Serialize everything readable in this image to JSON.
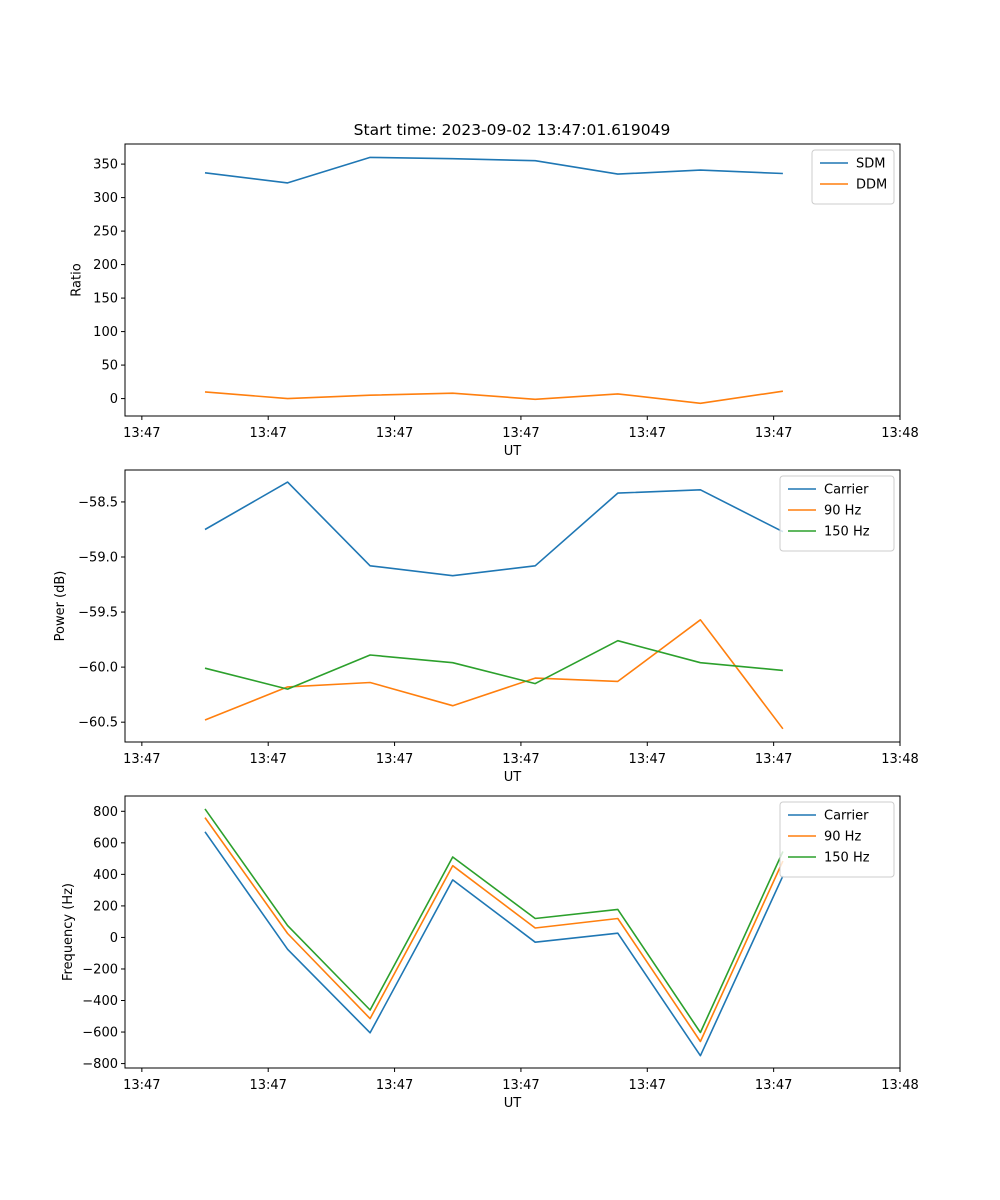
{
  "figure_title": "Start time: 2023-09-02 13:47:01.619049",
  "chart_data": [
    {
      "type": "line",
      "ylabel": "Ratio",
      "xlabel": "UT",
      "ylim": [
        -26,
        380
      ],
      "yticks": [
        0,
        50,
        100,
        150,
        200,
        250,
        300,
        350
      ],
      "ytick_labels": [
        "0",
        "50",
        "100",
        "150",
        "200",
        "250",
        "300",
        "350"
      ],
      "xlim": [
        -0.2,
        9.0
      ],
      "xticks": [
        0,
        1.5,
        3,
        4.5,
        6,
        7.5,
        9
      ],
      "xtick_labels": [
        "13:47",
        "13:47",
        "13:47",
        "13:47",
        "13:47",
        "13:47",
        "13:48"
      ],
      "x": [
        0.75,
        1.73,
        2.71,
        3.69,
        4.67,
        5.65,
        6.63,
        7.61
      ],
      "legend": "top-right",
      "series": [
        {
          "name": "SDM",
          "color": "#1f77b4",
          "values": [
            337,
            322,
            360,
            358,
            355,
            335,
            341,
            336
          ]
        },
        {
          "name": "DDM",
          "color": "#ff7f0e",
          "values": [
            10,
            0,
            5,
            8,
            -1,
            7,
            -7,
            11
          ]
        }
      ]
    },
    {
      "type": "line",
      "ylabel": "Power (dB)",
      "xlabel": "UT",
      "ylim": [
        -60.68,
        -58.21
      ],
      "yticks": [
        -60.5,
        -60.0,
        -59.5,
        -59.0,
        -58.5
      ],
      "ytick_labels": [
        "−60.5",
        "−60.0",
        "−59.5",
        "−59.0",
        "−58.5"
      ],
      "xlim": [
        -0.2,
        9.0
      ],
      "xticks": [
        0,
        1.5,
        3,
        4.5,
        6,
        7.5,
        9
      ],
      "xtick_labels": [
        "13:47",
        "13:47",
        "13:47",
        "13:47",
        "13:47",
        "13:47",
        "13:48"
      ],
      "x": [
        0.75,
        1.73,
        2.71,
        3.69,
        4.67,
        5.65,
        6.63,
        7.61
      ],
      "legend": "top-right",
      "series": [
        {
          "name": "Carrier",
          "color": "#1f77b4",
          "values": [
            -58.75,
            -58.32,
            -59.08,
            -59.17,
            -59.08,
            -58.42,
            -58.39,
            -58.77
          ]
        },
        {
          "name": "90 Hz",
          "color": "#ff7f0e",
          "values": [
            -60.48,
            -60.18,
            -60.14,
            -60.35,
            -60.1,
            -60.13,
            -59.57,
            -60.56
          ]
        },
        {
          "name": "150 Hz",
          "color": "#2ca02c",
          "values": [
            -60.01,
            -60.2,
            -59.89,
            -59.96,
            -60.15,
            -59.76,
            -59.96,
            -60.03
          ]
        }
      ]
    },
    {
      "type": "line",
      "ylabel": "Frequency (Hz)",
      "xlabel": "UT",
      "ylim": [
        -828,
        897
      ],
      "yticks": [
        -800,
        -600,
        -400,
        -200,
        0,
        200,
        400,
        600,
        800
      ],
      "ytick_labels": [
        "−800",
        "−600",
        "−400",
        "−200",
        "0",
        "200",
        "400",
        "600",
        "800"
      ],
      "xlim": [
        -0.2,
        9.0
      ],
      "xticks": [
        0,
        1.5,
        3,
        4.5,
        6,
        7.5,
        9
      ],
      "xtick_labels": [
        "13:47",
        "13:47",
        "13:47",
        "13:47",
        "13:47",
        "13:47",
        "13:48"
      ],
      "x": [
        0.75,
        1.73,
        2.71,
        3.69,
        4.67,
        5.65,
        6.63,
        7.61
      ],
      "legend": "top-right",
      "series": [
        {
          "name": "Carrier",
          "color": "#1f77b4",
          "values": [
            670,
            -75,
            -605,
            365,
            -30,
            27,
            -750,
            390
          ]
        },
        {
          "name": "90 Hz",
          "color": "#ff7f0e",
          "values": [
            760,
            25,
            -515,
            455,
            60,
            120,
            -660,
            485
          ]
        },
        {
          "name": "150 Hz",
          "color": "#2ca02c",
          "values": [
            815,
            75,
            -460,
            510,
            120,
            178,
            -603,
            545
          ]
        }
      ]
    }
  ]
}
